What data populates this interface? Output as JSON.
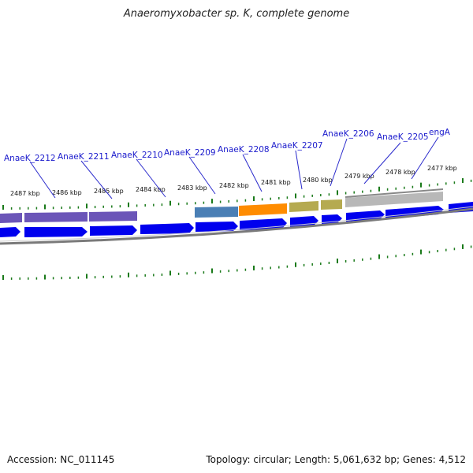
{
  "title": "Anaeromyxobacter sp. K, complete genome",
  "footer": {
    "accession": "Accession: NC_011145",
    "summary": "Topology: circular; Length: 5,061,632 bp; Genes: 4,512"
  },
  "genes": [
    {
      "label": "AnaeK_2212"
    },
    {
      "label": "AnaeK_2211"
    },
    {
      "label": "AnaeK_2210"
    },
    {
      "label": "AnaeK_2209"
    },
    {
      "label": "AnaeK_2208"
    },
    {
      "label": "AnaeK_2207"
    },
    {
      "label": "AnaeK_2206"
    },
    {
      "label": "AnaeK_2205"
    },
    {
      "label": "engA"
    }
  ],
  "scale_labels": [
    "2487 kbp",
    "2486 kbp",
    "2485 kbp",
    "2484 kbp",
    "2483 kbp",
    "2482 kbp",
    "2481 kbp",
    "2480 kbp",
    "2479 kbp",
    "2478 kbp",
    "2477 kbp"
  ],
  "colors": {
    "cds_arrow": "#0000ee",
    "feature_purple": "#6b55b8",
    "feature_steelblue": "#4a7fb5",
    "feature_orange": "#ff8c00",
    "feature_olive": "#b5aa50",
    "feature_gray": "#b8b8b8",
    "tick_green": "#1a7a1a",
    "backbone": "#888888",
    "label_blue": "#1a1acc"
  }
}
